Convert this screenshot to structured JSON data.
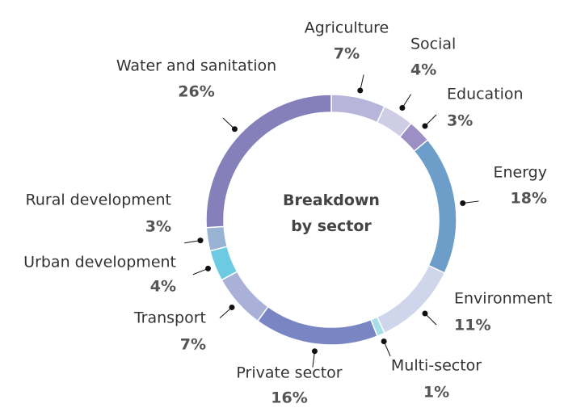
{
  "chart_data": {
    "type": "donut",
    "title": "Breakdown by sector",
    "categories": [
      "Agriculture",
      "Social",
      "Education",
      "Energy",
      "Environment",
      "Multi-sector",
      "Private sector",
      "Transport",
      "Urban development",
      "Rural development",
      "Water and sanitation"
    ],
    "values": [
      7,
      4,
      3,
      18,
      11,
      1,
      16,
      7,
      4,
      3,
      26
    ],
    "value_labels": [
      "7%",
      "4%",
      "3%",
      "18%",
      "11%",
      "1%",
      "16%",
      "7%",
      "4%",
      "3%",
      "26%"
    ],
    "colors": [
      "#b7b5d9",
      "#cfcde6",
      "#9b8fc4",
      "#6d9ec9",
      "#cfd5ea",
      "#a6dfe8",
      "#7a86c4",
      "#a9b1d9",
      "#6ccbe0",
      "#98b3d4",
      "#8580b9"
    ]
  }
}
